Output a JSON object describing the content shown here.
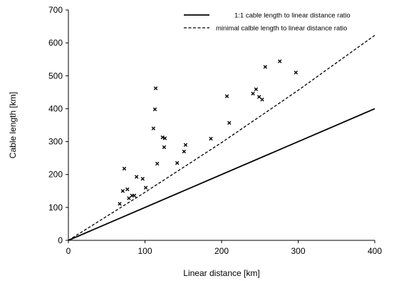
{
  "chart_data": {
    "type": "scatter",
    "title": "",
    "xlabel": "Linear distance [km]",
    "ylabel": "Cable length [km]",
    "xlim": [
      0,
      400
    ],
    "ylim": [
      0,
      700
    ],
    "xticks": [
      0,
      100,
      200,
      300,
      400
    ],
    "yticks": [
      0,
      100,
      200,
      300,
      400,
      500,
      600,
      700
    ],
    "grid": false,
    "legend_position": "top-right",
    "series": [
      {
        "name": "1:1 cable length to linear distance ratio",
        "kind": "line",
        "style": "solid",
        "color": "#000000",
        "x": [
          0,
          400
        ],
        "y": [
          0,
          400
        ]
      },
      {
        "name": "minimal calble length to linear distance ratio",
        "kind": "line",
        "style": "dashed",
        "color": "#000000",
        "x": [
          0,
          100,
          200,
          300,
          400
        ],
        "y": [
          0,
          146,
          297,
          456,
          623
        ]
      },
      {
        "name": "",
        "kind": "scatter",
        "marker": "x",
        "color": "#000000",
        "x": [
          67,
          71,
          73,
          77,
          79,
          83,
          86,
          89,
          97,
          101,
          111,
          113,
          114,
          116,
          123,
          125,
          126,
          142,
          151,
          153,
          186,
          207,
          210,
          241,
          245,
          249,
          253,
          257,
          276,
          297
        ],
        "y": [
          111,
          150,
          218,
          155,
          128,
          136,
          136,
          193,
          187,
          160,
          340,
          398,
          462,
          233,
          313,
          283,
          310,
          235,
          270,
          290,
          309,
          438,
          357,
          446,
          459,
          436,
          428,
          527,
          544,
          510
        ]
      }
    ]
  }
}
